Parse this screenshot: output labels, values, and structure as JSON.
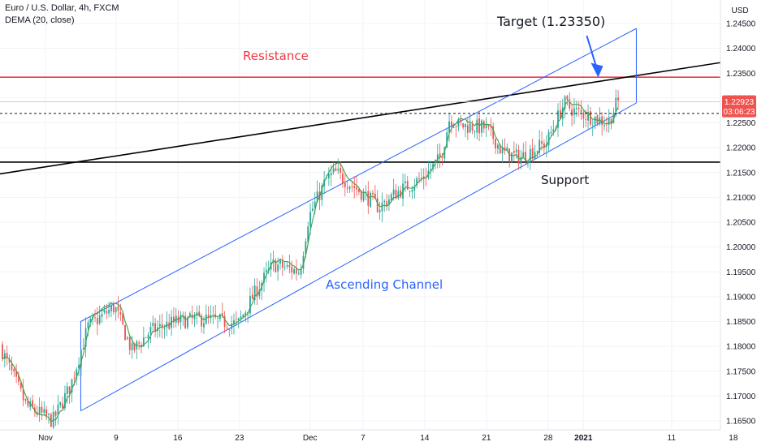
{
  "header": {
    "symbol_line": "Euro / U.S. Dollar, 4h, FXCM",
    "indicator_line": "DEMA (20, close)"
  },
  "chart_data": {
    "type": "candlestick",
    "instrument": "Euro / U.S. Dollar",
    "timeframe": "4h",
    "source": "FXCM",
    "indicator": "DEMA (20, close)",
    "price_axis": {
      "unit": "USD",
      "ticks": [
        "1.24500",
        "1.24000",
        "1.23500",
        "1.23000",
        "1.22500",
        "1.22000",
        "1.21500",
        "1.21000",
        "1.20500",
        "1.20000",
        "1.19500",
        "1.19000",
        "1.18500",
        "1.18000",
        "1.17500",
        "1.17000",
        "1.16500"
      ],
      "range": [
        1.1636,
        1.2472
      ]
    },
    "time_axis": {
      "ticks": [
        "Nov",
        "9",
        "16",
        "23",
        "Dec",
        "7",
        "14",
        "21",
        "28",
        "2021",
        "11",
        "18"
      ],
      "bold_ticks": [
        "2021"
      ]
    },
    "price_badges": {
      "last_price": "1.22923",
      "countdown": "03:06:23",
      "last_price_value": 1.22923,
      "countdown_level": 1.2269
    },
    "annotations": {
      "resistance_label": "Resistance",
      "support_label": "Support",
      "target_label": "Target  (1.23350)",
      "channel_label": "Ascending Channel",
      "resistance_level": 1.2342,
      "support_level": 1.2171,
      "target_price": 1.2335
    },
    "anchor_series": {
      "description": "Approximate close path (anchor points) in data units: t = calendar date, price = EUR/USD",
      "points": [
        [
          "2020-10-26",
          1.1845
        ],
        [
          "2020-10-28",
          1.176
        ],
        [
          "2020-10-30",
          1.168
        ],
        [
          "2020-11-02",
          1.165
        ],
        [
          "2020-11-04",
          1.172
        ],
        [
          "2020-11-06",
          1.184
        ],
        [
          "2020-11-09",
          1.188
        ],
        [
          "2020-11-11",
          1.179
        ],
        [
          "2020-11-13",
          1.183
        ],
        [
          "2020-11-16",
          1.185
        ],
        [
          "2020-11-19",
          1.1855
        ],
        [
          "2020-11-23",
          1.1845
        ],
        [
          "2020-11-25",
          1.191
        ],
        [
          "2020-11-27",
          1.1965
        ],
        [
          "2020-11-30",
          1.195
        ],
        [
          "2020-12-01",
          1.206
        ],
        [
          "2020-12-03",
          1.2135
        ],
        [
          "2020-12-04",
          1.215
        ],
        [
          "2020-12-07",
          1.211
        ],
        [
          "2020-12-09",
          1.208
        ],
        [
          "2020-12-11",
          1.211
        ],
        [
          "2020-12-14",
          1.214
        ],
        [
          "2020-12-16",
          1.218
        ],
        [
          "2020-12-17",
          1.226
        ],
        [
          "2020-12-18",
          1.2245
        ],
        [
          "2020-12-21",
          1.224
        ],
        [
          "2020-12-22",
          1.222
        ],
        [
          "2020-12-23",
          1.219
        ],
        [
          "2020-12-25",
          1.218
        ],
        [
          "2020-12-28",
          1.221
        ],
        [
          "2020-12-30",
          1.229
        ],
        [
          "2020-12-31",
          1.2275
        ],
        [
          "2021-01-04",
          1.225
        ],
        [
          "2021-01-05",
          1.2292
        ]
      ]
    },
    "drawings": {
      "channel_upper": [
        [
          "2020-11-05",
          1.185
        ],
        [
          "2021-01-07",
          1.244
        ]
      ],
      "channel_lower": [
        [
          "2020-11-05",
          1.167
        ],
        [
          "2021-01-07",
          1.229
        ]
      ],
      "channel_right_edge": [
        [
          "2021-01-07",
          1.244
        ],
        [
          "2021-01-07",
          1.229
        ]
      ],
      "trendline": [
        [
          "2020-10-26",
          1.2145
        ],
        [
          "2021-01-23",
          1.2389
        ]
      ]
    }
  },
  "colors": {
    "candle_up": "#26a69a",
    "candle_down": "#ef5350",
    "resistance_line": "#f23645",
    "support_line": "#000000",
    "channel": "#2962ff",
    "dema_line": "#43a047",
    "label_blue": "#2962ff",
    "label_red": "#f23645",
    "axis_text": "#131722",
    "grid": "#f0f3fa"
  }
}
